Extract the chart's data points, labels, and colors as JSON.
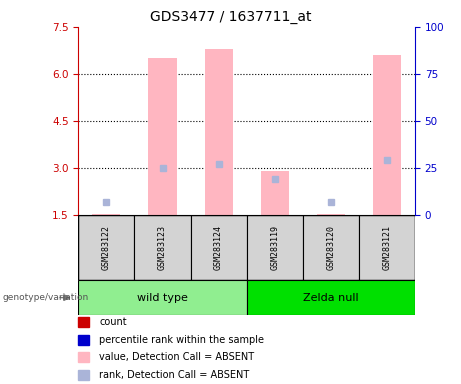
{
  "title": "GDS3477 / 1637711_at",
  "samples": [
    "GSM283122",
    "GSM283123",
    "GSM283124",
    "GSM283119",
    "GSM283120",
    "GSM283121"
  ],
  "groups": [
    {
      "name": "wild type",
      "color": "#90ee90",
      "indices": [
        0,
        1,
        2
      ]
    },
    {
      "name": "Zelda null",
      "color": "#00e000",
      "indices": [
        3,
        4,
        5
      ]
    }
  ],
  "bar_values": [
    1.52,
    6.5,
    6.8,
    2.9,
    1.52,
    6.6
  ],
  "rank_values_pct": [
    7,
    25,
    27,
    19,
    7,
    29
  ],
  "ylim_left": [
    1.5,
    7.5
  ],
  "ylim_right": [
    0,
    100
  ],
  "yticks_left": [
    1.5,
    3.0,
    4.5,
    6.0,
    7.5
  ],
  "yticks_right": [
    0,
    25,
    50,
    75,
    100
  ],
  "bar_color": "#ffb6c1",
  "rank_color": "#aab4d8",
  "bar_width": 0.5,
  "legend_colors": [
    "#cc0000",
    "#0000cc",
    "#ffb6c1",
    "#aab4d8"
  ],
  "legend_labels": [
    "count",
    "percentile rank within the sample",
    "value, Detection Call = ABSENT",
    "rank, Detection Call = ABSENT"
  ],
  "left_axis_color": "#cc0000",
  "right_axis_color": "#0000cc",
  "genotype_label": "genotype/variation",
  "sample_box_color": "#d3d3d3",
  "dotted_lines": [
    3.0,
    4.5,
    6.0
  ]
}
